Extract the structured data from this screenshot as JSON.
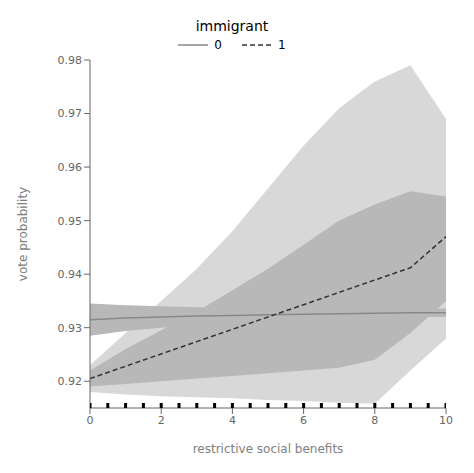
{
  "chart_data": {
    "type": "line",
    "title": "immigrant",
    "xlabel": "restrictive social benefits",
    "ylabel": "vote probability",
    "x": [
      0,
      1,
      2,
      3,
      4,
      5,
      6,
      7,
      8,
      9,
      10
    ],
    "series": [
      {
        "name": "0",
        "color": "#888888",
        "line_style": "solid",
        "values": [
          0.9315,
          0.9318,
          0.932,
          0.9322,
          0.9323,
          0.9324,
          0.9325,
          0.9326,
          0.9327,
          0.9328,
          0.9328
        ]
      },
      {
        "name": "1",
        "color": "#333333",
        "line_style": "dashed",
        "values": [
          0.9205,
          0.9228,
          0.9251,
          0.9274,
          0.9297,
          0.932,
          0.9343,
          0.9366,
          0.9389,
          0.9412,
          0.947
        ]
      }
    ],
    "bands": [
      {
        "color": "#d8d8d8",
        "lower": [
          0.918,
          0.9175,
          0.9172,
          0.917,
          0.9168,
          0.9165,
          0.9163,
          0.916,
          0.9158,
          0.922,
          0.928
        ],
        "upper": [
          0.923,
          0.929,
          0.935,
          0.941,
          0.948,
          0.956,
          0.964,
          0.971,
          0.976,
          0.979,
          0.969
        ]
      },
      {
        "color": "#b8b8b8",
        "lower": [
          0.9285,
          0.9294,
          0.93,
          0.9306,
          0.9309,
          0.9312,
          0.9314,
          0.9316,
          0.9318,
          0.932,
          0.932
        ],
        "upper": [
          0.9345,
          0.9342,
          0.934,
          0.9338,
          0.9337,
          0.9336,
          0.9336,
          0.9336,
          0.9336,
          0.9336,
          0.9336
        ]
      },
      {
        "color": "#b8b8b8",
        "lower": [
          0.919,
          0.9195,
          0.92,
          0.9205,
          0.921,
          0.9215,
          0.922,
          0.9225,
          0.924,
          0.929,
          0.935
        ],
        "upper": [
          0.922,
          0.926,
          0.9295,
          0.933,
          0.937,
          0.941,
          0.9455,
          0.95,
          0.953,
          0.9555,
          0.9545
        ]
      }
    ],
    "rug_x": [
      0.0,
      0.5,
      1.0,
      1.5,
      2.0,
      2.5,
      3.0,
      3.5,
      4.0,
      4.5,
      5.0,
      5.5,
      6.0,
      6.5,
      7.0,
      7.5,
      8.0,
      8.5,
      9.0,
      9.5,
      10.0
    ],
    "rug_color": "#000000",
    "xlim": [
      0,
      10
    ],
    "ylim": [
      0.915,
      0.98
    ],
    "xticks": [
      0,
      2,
      4,
      6,
      8,
      10
    ],
    "yticks": [
      0.92,
      0.93,
      0.94,
      0.95,
      0.96,
      0.97,
      0.98
    ]
  }
}
